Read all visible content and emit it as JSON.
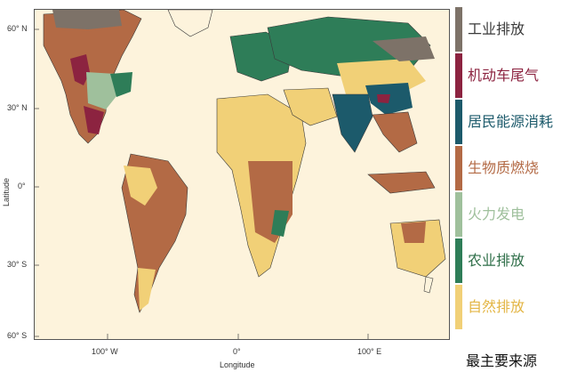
{
  "map": {
    "lat_labels": [
      "60° N",
      "30° N",
      "0°",
      "30° S",
      "60° S"
    ],
    "lon_labels": [
      "100° W",
      "0°",
      "100° E"
    ],
    "xlabel": "Longitude",
    "ylabel": "Latitude"
  },
  "colors": {
    "ocean": "#fdf3dc",
    "coast": "#3a3a3a"
  },
  "legend": {
    "items": [
      {
        "label": "工业排放",
        "color": "#7d7268",
        "text_color": "#3a3a3a"
      },
      {
        "label": "机动车尾气",
        "color": "#8c2340",
        "text_color": "#8c2340"
      },
      {
        "label": "居民能源消耗",
        "color": "#1c5a6b",
        "text_color": "#1c5a6b"
      },
      {
        "label": "生物质燃烧",
        "color": "#b36a45",
        "text_color": "#b36a45"
      },
      {
        "label": "火力发电",
        "color": "#9fc09c",
        "text_color": "#9fc09c"
      },
      {
        "label": "农业排放",
        "color": "#2e7d58",
        "text_color": "#2e6e48"
      },
      {
        "label": "自然排放",
        "color": "#f1d077",
        "text_color": "#e3b544"
      }
    ],
    "footer": "最主要来源"
  }
}
